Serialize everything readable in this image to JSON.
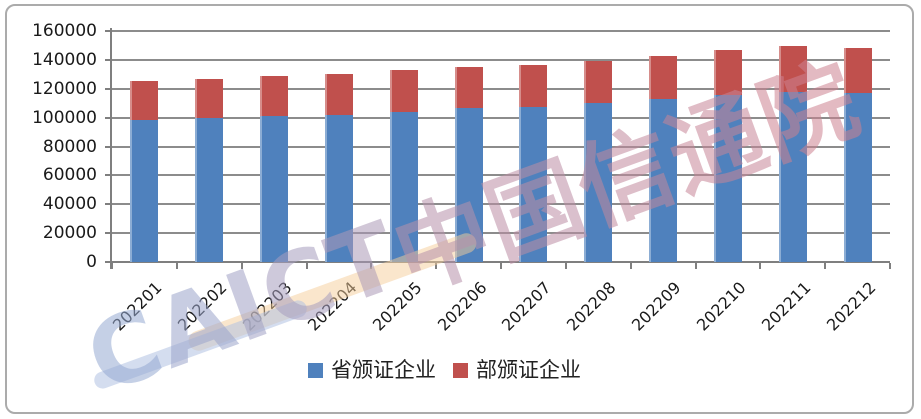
{
  "chart_data": {
    "type": "bar",
    "stacked": true,
    "title": "",
    "xlabel": "",
    "ylabel": "",
    "categories": [
      "202201",
      "202202",
      "202203",
      "202204",
      "202205",
      "202206",
      "202207",
      "202208",
      "202209",
      "202210",
      "202211",
      "202212"
    ],
    "series": [
      {
        "name": "省颁证企业",
        "color": "#4F81BD",
        "values": [
          98500,
          100000,
          101000,
          102000,
          104000,
          106500,
          107500,
          110000,
          113000,
          115500,
          118000,
          117000
        ]
      },
      {
        "name": "部颁证企业",
        "color": "#C0504D",
        "values": [
          27000,
          27000,
          27500,
          28000,
          29000,
          28500,
          29000,
          29500,
          30000,
          31000,
          31500,
          31000
        ]
      }
    ],
    "ylim": [
      0,
      160000
    ],
    "ytick_step": 20000,
    "yticks": [
      "0",
      "20000",
      "40000",
      "60000",
      "80000",
      "100000",
      "120000",
      "140000",
      "160000"
    ],
    "grid": "horizontal",
    "legend_position": "bottom-center",
    "x_tick_label_rotation": -45
  },
  "legend": {
    "items": [
      {
        "label": "省颁证企业",
        "color": "#4F81BD"
      },
      {
        "label": "部颁证企业",
        "color": "#C0504D"
      }
    ]
  },
  "watermark": {
    "text": "CAICT 中国信通院"
  },
  "colors": {
    "bar_blue": "#4F81BD",
    "bar_red": "#C0504D",
    "gridline": "#8C8C8C",
    "axis": "#7F7F7F",
    "frame_border": "#ABABAB",
    "text": "#1A1A1A",
    "watermark_start": "#96AAD2",
    "watermark_end": "#CD8291",
    "swoosh_orange": "#F6CD99",
    "swoosh_blue": "#B0C1E2"
  }
}
